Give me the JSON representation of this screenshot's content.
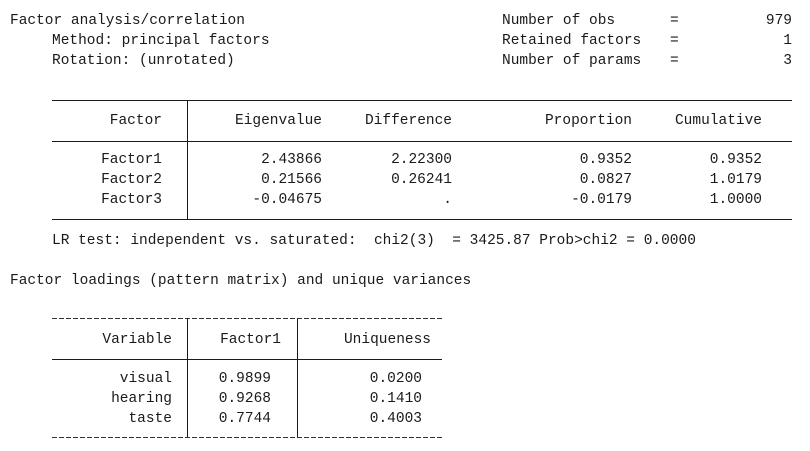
{
  "header": {
    "title": "Factor analysis/correlation",
    "method": "Method: principal factors",
    "rotation": "Rotation: (unrotated)",
    "stats": [
      {
        "label": "Number of obs",
        "eq": "=",
        "value": "979"
      },
      {
        "label": "Retained factors",
        "eq": "=",
        "value": "1"
      },
      {
        "label": "Number of params",
        "eq": "=",
        "value": "3"
      }
    ]
  },
  "factor_table": {
    "columns": [
      "Factor",
      "Eigenvalue",
      "Difference",
      "Proportion",
      "Cumulative"
    ],
    "rows": [
      [
        "Factor1",
        "2.43866",
        "2.22300",
        "0.9352",
        "0.9352"
      ],
      [
        "Factor2",
        "0.21566",
        "0.26241",
        "0.0827",
        "1.0179"
      ],
      [
        "Factor3",
        "-0.04675",
        ".",
        "-0.0179",
        "1.0000"
      ]
    ]
  },
  "lr_test": "LR test: independent vs. saturated:  chi2(3)  = 3425.87 Prob>chi2 = 0.0000",
  "loadings_title": "Factor loadings (pattern matrix) and unique variances",
  "loadings_table": {
    "columns": [
      "Variable",
      "Factor1",
      "Uniqueness"
    ],
    "rows": [
      [
        "visual",
        "0.9899",
        "0.0200"
      ],
      [
        "hearing",
        "0.9268",
        "0.1410"
      ],
      [
        "taste",
        "0.7744",
        "0.4003"
      ]
    ]
  }
}
